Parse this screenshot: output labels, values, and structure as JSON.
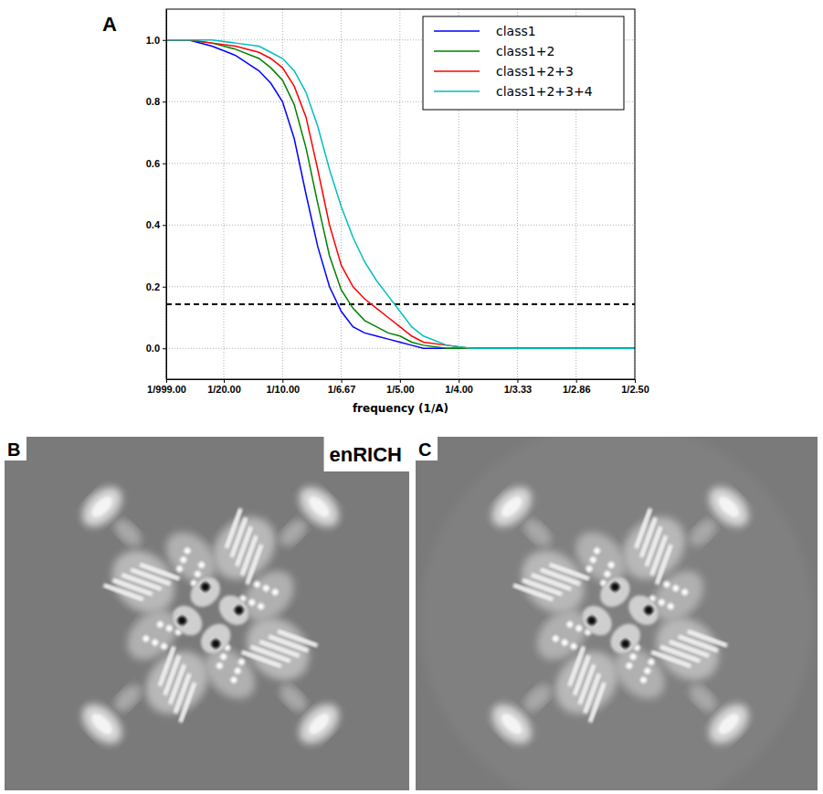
{
  "chart_data": {
    "type": "line",
    "panel_label": "A",
    "x_label": "frequency (1/A)",
    "x": [
      0.001,
      0.02,
      0.04,
      0.06,
      0.08,
      0.09,
      0.1,
      0.11,
      0.12,
      0.13,
      0.14,
      0.15,
      0.16,
      0.17,
      0.18,
      0.19,
      0.2,
      0.21,
      0.22,
      0.24,
      0.26,
      0.3,
      0.35,
      0.4
    ],
    "series": [
      {
        "name": "class1",
        "color": "#0000ff",
        "values": [
          1.0,
          1.0,
          0.98,
          0.95,
          0.9,
          0.86,
          0.8,
          0.68,
          0.5,
          0.33,
          0.2,
          0.12,
          0.07,
          0.05,
          0.04,
          0.03,
          0.02,
          0.01,
          0.0,
          0.0,
          0.0,
          0.0,
          0.0,
          0.0
        ]
      },
      {
        "name": "class1+2",
        "color": "#008000",
        "values": [
          1.0,
          1.0,
          0.99,
          0.97,
          0.94,
          0.91,
          0.87,
          0.79,
          0.65,
          0.47,
          0.3,
          0.19,
          0.13,
          0.09,
          0.07,
          0.05,
          0.04,
          0.02,
          0.01,
          0.0,
          0.0,
          0.0,
          0.0,
          0.0
        ]
      },
      {
        "name": "class1+2+3",
        "color": "#ff0000",
        "values": [
          1.0,
          1.0,
          0.99,
          0.98,
          0.96,
          0.94,
          0.91,
          0.85,
          0.75,
          0.58,
          0.4,
          0.27,
          0.2,
          0.16,
          0.13,
          0.1,
          0.07,
          0.04,
          0.02,
          0.01,
          0.0,
          0.0,
          0.0,
          0.0
        ]
      },
      {
        "name": "class1+2+3+4",
        "color": "#00bfbf",
        "values": [
          1.0,
          1.0,
          1.0,
          0.99,
          0.98,
          0.96,
          0.94,
          0.9,
          0.83,
          0.72,
          0.58,
          0.46,
          0.36,
          0.28,
          0.22,
          0.17,
          0.12,
          0.07,
          0.04,
          0.01,
          0.0,
          0.0,
          0.0,
          0.0
        ]
      }
    ],
    "threshold_line": 0.143,
    "xlim": [
      0.001,
      0.4
    ],
    "xticks": [
      {
        "value": 0.001,
        "label": "1/999.00"
      },
      {
        "value": 0.05,
        "label": "1/20.00"
      },
      {
        "value": 0.1,
        "label": "1/10.00"
      },
      {
        "value": 0.15,
        "label": "1/6.67"
      },
      {
        "value": 0.2,
        "label": "1/5.00"
      },
      {
        "value": 0.25,
        "label": "1/4.00"
      },
      {
        "value": 0.3,
        "label": "1/3.33"
      },
      {
        "value": 0.35,
        "label": "1/2.86"
      },
      {
        "value": 0.4,
        "label": "1/2.50"
      }
    ],
    "ylim": [
      -0.1,
      1.1
    ],
    "yticks": [
      {
        "value": 0,
        "label": "0.0"
      },
      {
        "value": 0.2,
        "label": "0.2"
      },
      {
        "value": 0.4,
        "label": "0.4"
      },
      {
        "value": 0.6,
        "label": "0.6"
      },
      {
        "value": 0.8,
        "label": "0.8"
      },
      {
        "value": 1,
        "label": "1.0"
      }
    ],
    "grid": true,
    "legend": "upper right"
  },
  "images": [
    {
      "panel_label": "B",
      "label": "enRICH"
    },
    {
      "panel_label": "C"
    }
  ]
}
